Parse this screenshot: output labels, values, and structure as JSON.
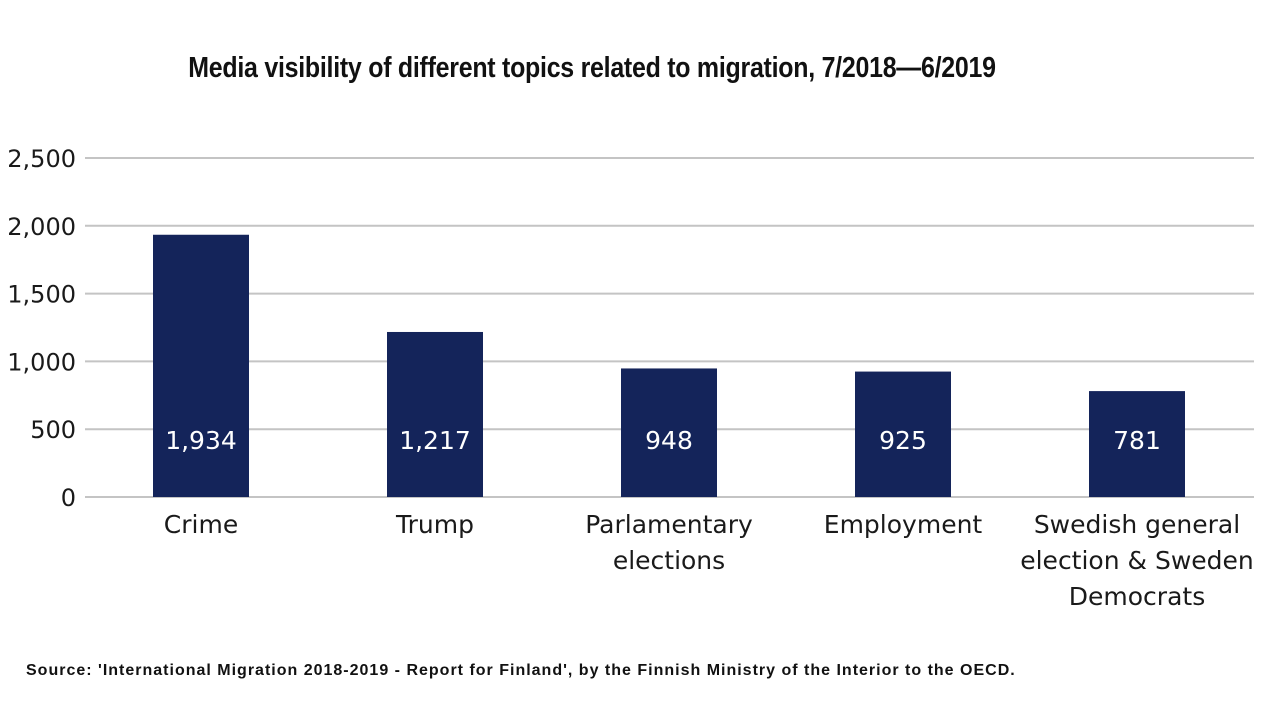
{
  "chart_data": {
    "type": "bar",
    "title": "Media visibility of different topics related to migration, 7/2018—6/2019",
    "categories": [
      "Crime",
      "Trump",
      "Parlamentary elections",
      "Employment",
      "Swedish general election & Sweden Democrats"
    ],
    "category_lines": [
      [
        "Crime"
      ],
      [
        "Trump"
      ],
      [
        "Parlamentary",
        "elections"
      ],
      [
        "Employment"
      ],
      [
        "Swedish general",
        "election & Sweden",
        "Democrats"
      ]
    ],
    "values": [
      1934,
      1217,
      948,
      925,
      781
    ],
    "data_labels": [
      "1,934",
      "1,217",
      "948",
      "925",
      "781"
    ],
    "yticks": [
      0,
      500,
      1000,
      1500,
      2000,
      2500
    ],
    "ytick_labels": [
      "0",
      "500",
      "1,000",
      "1,500",
      "2,000",
      "2,500"
    ],
    "ylim": [
      0,
      2500
    ],
    "xlabel": "",
    "ylabel": "",
    "grid": true,
    "bar_color": "#14245a",
    "grid_color": "#c4c4c4"
  },
  "source": "Source: 'International Migration 2018-2019 - Report for Finland', by the Finnish Ministry of the Interior to the OECD."
}
